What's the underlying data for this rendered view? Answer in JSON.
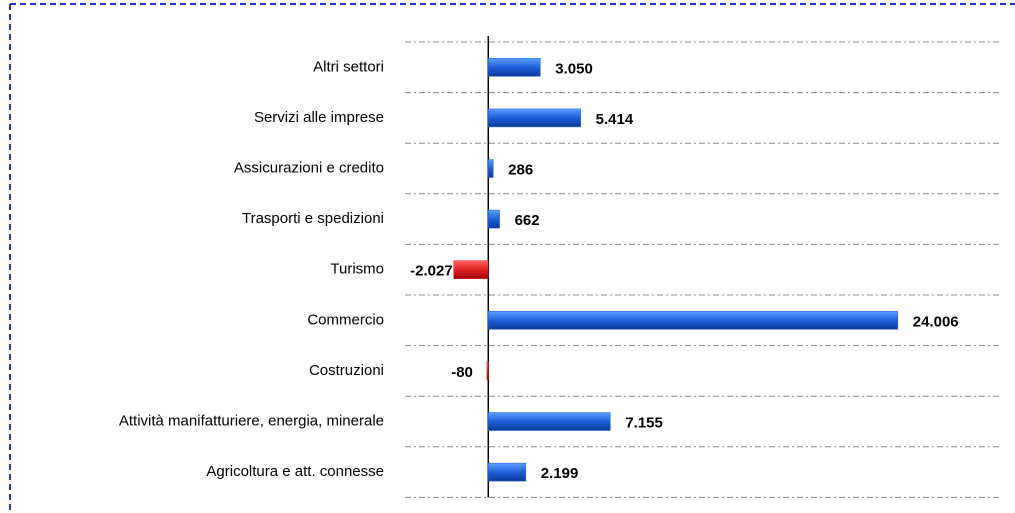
{
  "chart_data": {
    "type": "hbar",
    "categories": [
      "Altri settori",
      "Servizi alle imprese",
      "Assicurazioni e credito",
      "Trasporti e spedizioni",
      "Turismo",
      "Commercio",
      "Costruzioni",
      "Attività manifatturiere, energia, minerale",
      "Agricoltura e att. connesse"
    ],
    "values": [
      3050,
      5414,
      286,
      662,
      -2027,
      24006,
      -80,
      7155,
      2199
    ],
    "value_labels": [
      "3.050",
      "5.414",
      "286",
      "662",
      "-2.027",
      "24.006",
      "-80",
      "7.155",
      "2.199"
    ],
    "color": "#1f5fd6",
    "negative_color": "#e02424",
    "xlim": [
      -5000,
      30000
    ]
  }
}
